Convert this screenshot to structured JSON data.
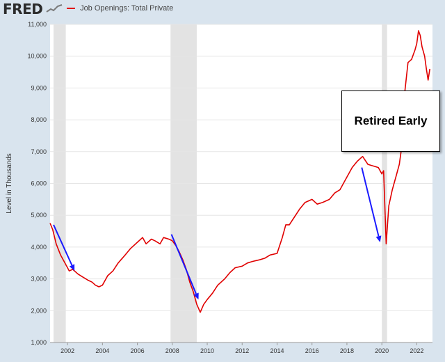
{
  "header": {
    "logo_text": "FRED",
    "legend_label": "Job Openings: Total Private"
  },
  "annotation": {
    "text": "Retired Early"
  },
  "colors": {
    "series": "#e00000",
    "arrow": "#1a1aff",
    "recession": "#e3e3e3",
    "plot_bg": "#ffffff",
    "page_bg": "#d9e4ee"
  },
  "chart_data": {
    "type": "line",
    "title": "",
    "xlabel": "",
    "ylabel": "Level in Thousands",
    "ylim": [
      1000,
      11000
    ],
    "xlim": [
      2001.0,
      2022.9
    ],
    "y_ticks": [
      1000,
      2000,
      3000,
      4000,
      5000,
      6000,
      7000,
      8000,
      9000,
      10000,
      11000
    ],
    "y_tick_labels": [
      "1,000",
      "2,000",
      "3,000",
      "4,000",
      "5,000",
      "6,000",
      "7,000",
      "8,000",
      "9,000",
      "10,000",
      "11,000"
    ],
    "x_ticks": [
      2002,
      2004,
      2006,
      2008,
      2010,
      2012,
      2014,
      2016,
      2018,
      2020,
      2022
    ],
    "x_tick_labels": [
      "2002",
      "2004",
      "2006",
      "2008",
      "2010",
      "2012",
      "2014",
      "2016",
      "2018",
      "2020",
      "2022"
    ],
    "grid": true,
    "recessions": [
      [
        2001.2,
        2001.9
      ],
      [
        2007.9,
        2009.4
      ],
      [
        2020.0,
        2020.3
      ]
    ],
    "series": [
      {
        "x": [
          2001.0,
          2001.15,
          2001.35,
          2001.6,
          2001.9,
          2002.1,
          2002.3,
          2002.6,
          2002.9,
          2003.2,
          2003.4,
          2003.6,
          2003.8,
          2004.0,
          2004.3,
          2004.6,
          2004.9,
          2005.3,
          2005.6,
          2006.0,
          2006.3,
          2006.5,
          2006.8,
          2007.0,
          2007.3,
          2007.5,
          2007.8,
          2008.0,
          2008.2,
          2008.4,
          2008.6,
          2008.8,
          2009.0,
          2009.2,
          2009.4,
          2009.6,
          2009.8,
          2010.0,
          2010.3,
          2010.6,
          2011.0,
          2011.3,
          2011.6,
          2012.0,
          2012.3,
          2012.6,
          2013.0,
          2013.3,
          2013.6,
          2014.0,
          2014.3,
          2014.5,
          2014.7,
          2015.0,
          2015.3,
          2015.6,
          2016.0,
          2016.3,
          2016.6,
          2017.0,
          2017.3,
          2017.6,
          2018.0,
          2018.3,
          2018.6,
          2018.9,
          2019.2,
          2019.5,
          2019.8,
          2020.0,
          2020.1,
          2020.25,
          2020.4,
          2020.6,
          2020.8,
          2021.0,
          2021.2,
          2021.3,
          2021.5,
          2021.7,
          2021.9,
          2022.0,
          2022.1,
          2022.2,
          2022.3,
          2022.45,
          2022.55,
          2022.65,
          2022.75
        ],
        "y": [
          4750,
          4550,
          4100,
          3750,
          3450,
          3250,
          3300,
          3150,
          3050,
          2950,
          2900,
          2800,
          2750,
          2800,
          3100,
          3250,
          3500,
          3750,
          3950,
          4150,
          4300,
          4100,
          4250,
          4200,
          4100,
          4300,
          4250,
          4200,
          4050,
          3850,
          3600,
          3300,
          2900,
          2600,
          2200,
          1950,
          2200,
          2350,
          2550,
          2800,
          3000,
          3200,
          3350,
          3400,
          3500,
          3550,
          3600,
          3650,
          3750,
          3800,
          4300,
          4700,
          4700,
          4950,
          5200,
          5400,
          5500,
          5350,
          5400,
          5500,
          5700,
          5800,
          6200,
          6500,
          6700,
          6850,
          6600,
          6550,
          6500,
          6300,
          6400,
          4100,
          5300,
          5800,
          6200,
          6600,
          7400,
          8800,
          9800,
          9900,
          10200,
          10400,
          10800,
          10650,
          10300,
          10000,
          9600,
          9250,
          9600
        ]
      }
    ],
    "arrows": [
      {
        "from": [
          2001.2,
          4700
        ],
        "to": [
          2002.4,
          3250
        ]
      },
      {
        "from": [
          2007.95,
          4400
        ],
        "to": [
          2009.5,
          2350
        ]
      },
      {
        "from": [
          2018.85,
          6500
        ],
        "to": [
          2019.9,
          4150
        ]
      }
    ]
  }
}
